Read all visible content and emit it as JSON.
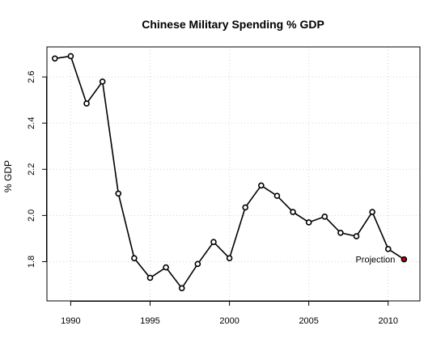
{
  "chart_data": {
    "type": "line",
    "title": "Chinese Military Spending % GDP",
    "xlabel": "",
    "ylabel": "% GDP",
    "xlim": [
      1988.5,
      2012
    ],
    "ylim": [
      1.63,
      2.73
    ],
    "x_ticks": [
      1990,
      1995,
      2000,
      2005,
      2010
    ],
    "x_tick_labels": [
      "1990",
      "1995",
      "2000",
      "2005",
      "2010"
    ],
    "y_ticks": [
      1.8,
      2.0,
      2.2,
      2.4,
      2.6
    ],
    "y_tick_labels": [
      "1.8",
      "2.0",
      "2.2",
      "2.4",
      "2.6"
    ],
    "grid": true,
    "series": [
      {
        "x": [
          1989,
          1990,
          1991,
          1992,
          1993,
          1994,
          1995,
          1996,
          1997,
          1998,
          1999,
          2000,
          2001,
          2002,
          2003,
          2004,
          2005,
          2006,
          2007,
          2008,
          2009,
          2010,
          2011
        ],
        "values": [
          2.68,
          2.69,
          2.485,
          2.58,
          2.095,
          1.815,
          1.73,
          1.775,
          1.685,
          1.79,
          1.885,
          1.815,
          2.035,
          2.13,
          2.085,
          2.015,
          1.97,
          1.995,
          1.925,
          1.91,
          2.015,
          1.855,
          1.81
        ]
      }
    ],
    "highlight": {
      "x": 2011,
      "value": 1.81,
      "color": "#cc0000"
    },
    "annotations": [
      {
        "text": "Projection",
        "x": 2011,
        "value": 1.81,
        "position": "left"
      }
    ]
  }
}
